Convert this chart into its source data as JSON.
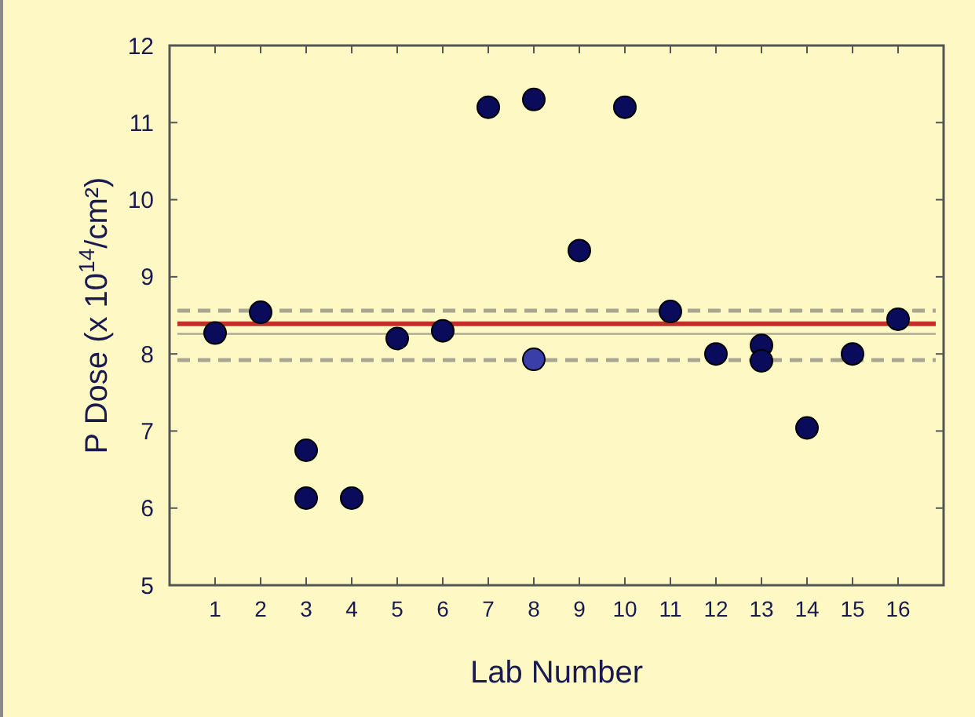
{
  "chart_data": {
    "type": "scatter",
    "xlabel": "Lab Number",
    "ylabel": "P Dose (x 10$^{14}$/cm²)",
    "categories": [
      "1",
      "2",
      "3",
      "4",
      "5",
      "6",
      "7",
      "8",
      "9",
      "10",
      "11",
      "12",
      "13",
      "14",
      "15",
      "16"
    ],
    "series": [
      {
        "color": "#0b0b5c",
        "x": [
          "1",
          "2",
          "3",
          "3",
          "4",
          "5",
          "6",
          "7",
          "8",
          "9",
          "10",
          "11",
          "12",
          "13",
          "13",
          "14",
          "15",
          "16"
        ],
        "values": [
          8.27,
          8.54,
          6.75,
          6.13,
          6.13,
          8.2,
          8.3,
          11.2,
          11.3,
          9.34,
          11.2,
          8.55,
          8.0,
          8.11,
          7.91,
          7.04,
          8.0,
          8.45
        ]
      },
      {
        "color": "#3a3ea8",
        "x": [
          "8"
        ],
        "values": [
          7.93
        ]
      }
    ],
    "ylim": [
      5,
      12
    ],
    "yticks": [
      5,
      6,
      7,
      8,
      9,
      10,
      11,
      12
    ],
    "grid": false,
    "marker": "circle",
    "ref_lines": [
      {
        "axis": "y",
        "value": 8.39,
        "color": "#c0302a",
        "line_style": "solid"
      },
      {
        "axis": "y",
        "value": 8.26,
        "color": "#a8a690",
        "line_style": "solid"
      },
      {
        "axis": "y",
        "value": 8.56,
        "color": "#a8a690",
        "line_style": "dashed"
      },
      {
        "axis": "y",
        "value": 7.92,
        "color": "#a8a690",
        "line_style": "dashed"
      }
    ]
  }
}
